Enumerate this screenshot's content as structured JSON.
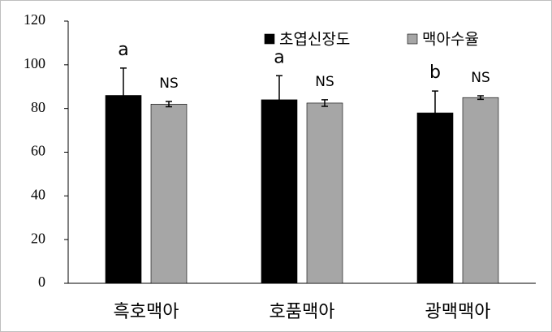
{
  "chart_data": {
    "type": "bar",
    "categories": [
      "흑호맥아",
      "호품맥아",
      "광맥맥아"
    ],
    "series": [
      {
        "name": "초엽신장도",
        "color": "#000000",
        "values": [
          86,
          84,
          78
        ],
        "errors": [
          12.5,
          11,
          10
        ],
        "labels": [
          "a",
          "a",
          "b"
        ]
      },
      {
        "name": "맥아수율",
        "color": "#a6a6a6",
        "values": [
          82,
          82.5,
          85
        ],
        "errors": [
          1.2,
          1.5,
          0.8
        ],
        "labels": [
          "NS",
          "NS",
          "NS"
        ]
      }
    ],
    "ylim": [
      0,
      120
    ],
    "yticks": [
      0,
      20,
      40,
      60,
      80,
      100,
      120
    ],
    "grid": false,
    "legend": "top"
  }
}
